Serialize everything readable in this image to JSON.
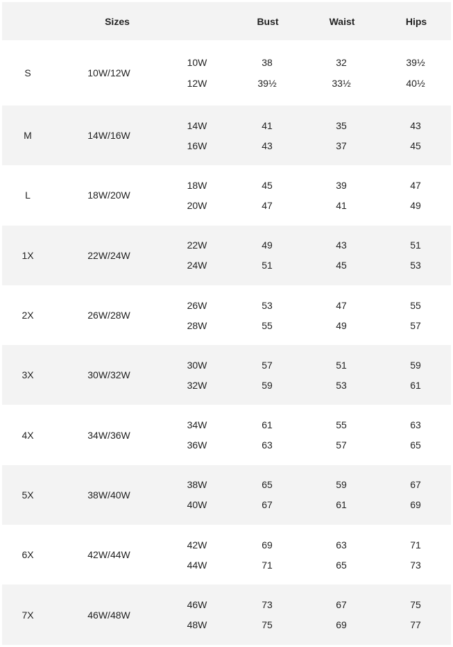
{
  "headers": {
    "sizes": "Sizes",
    "bust": "Bust",
    "waist": "Waist",
    "hips": "Hips"
  },
  "rows": [
    {
      "label": "S",
      "range": "10W/12W",
      "sub": [
        "10W",
        "12W"
      ],
      "bust": [
        "38",
        "39½"
      ],
      "waist": [
        "32",
        "33½"
      ],
      "hips": [
        "39½",
        "40½"
      ]
    },
    {
      "label": "M",
      "range": "14W/16W",
      "sub": [
        "14W",
        "16W"
      ],
      "bust": [
        "41",
        "43"
      ],
      "waist": [
        "35",
        "37"
      ],
      "hips": [
        "43",
        "45"
      ]
    },
    {
      "label": "L",
      "range": "18W/20W",
      "sub": [
        "18W",
        "20W"
      ],
      "bust": [
        "45",
        "47"
      ],
      "waist": [
        "39",
        "41"
      ],
      "hips": [
        "47",
        "49"
      ]
    },
    {
      "label": "1X",
      "range": "22W/24W",
      "sub": [
        "22W",
        "24W"
      ],
      "bust": [
        "49",
        "51"
      ],
      "waist": [
        "43",
        "45"
      ],
      "hips": [
        "51",
        "53"
      ]
    },
    {
      "label": "2X",
      "range": "26W/28W",
      "sub": [
        "26W",
        "28W"
      ],
      "bust": [
        "53",
        "55"
      ],
      "waist": [
        "47",
        "49"
      ],
      "hips": [
        "55",
        "57"
      ]
    },
    {
      "label": "3X",
      "range": "30W/32W",
      "sub": [
        "30W",
        "32W"
      ],
      "bust": [
        "57",
        "59"
      ],
      "waist": [
        "51",
        "53"
      ],
      "hips": [
        "59",
        "61"
      ]
    },
    {
      "label": "4X",
      "range": "34W/36W",
      "sub": [
        "34W",
        "36W"
      ],
      "bust": [
        "61",
        "63"
      ],
      "waist": [
        "55",
        "57"
      ],
      "hips": [
        "63",
        "65"
      ]
    },
    {
      "label": "5X",
      "range": "38W/40W",
      "sub": [
        "38W",
        "40W"
      ],
      "bust": [
        "65",
        "67"
      ],
      "waist": [
        "59",
        "61"
      ],
      "hips": [
        "67",
        "69"
      ]
    },
    {
      "label": "6X",
      "range": "42W/44W",
      "sub": [
        "42W",
        "44W"
      ],
      "bust": [
        "69",
        "71"
      ],
      "waist": [
        "63",
        "65"
      ],
      "hips": [
        "71",
        "73"
      ]
    },
    {
      "label": "7X",
      "range": "46W/48W",
      "sub": [
        "46W",
        "48W"
      ],
      "bust": [
        "73",
        "75"
      ],
      "waist": [
        "67",
        "69"
      ],
      "hips": [
        "75",
        "77"
      ]
    }
  ],
  "colors": {
    "stripe": "#f3f3f3",
    "text": "#222222"
  }
}
